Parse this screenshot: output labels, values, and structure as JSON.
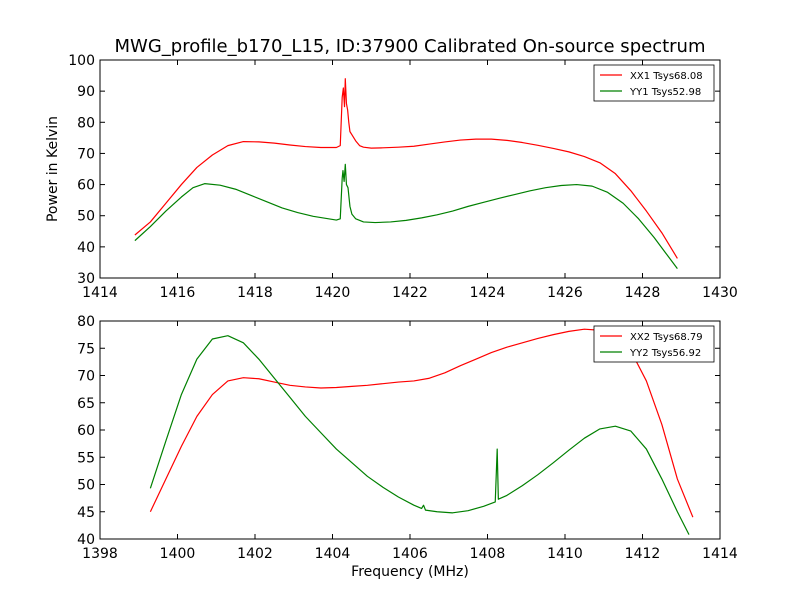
{
  "figure_title": "MWG_profile_b170_L15, ID:37900 Calibrated On-source spectrum",
  "chart_data": [
    {
      "type": "line",
      "xlabel": "",
      "ylabel": "Power in Kelvin",
      "xlim": [
        1414,
        1430
      ],
      "ylim": [
        30,
        100
      ],
      "xticks": [
        1414,
        1416,
        1418,
        1420,
        1422,
        1424,
        1426,
        1428,
        1430
      ],
      "yticks": [
        30,
        40,
        50,
        60,
        70,
        80,
        90,
        100
      ],
      "legend_position": "top-right",
      "series": [
        {
          "name": "XX1 Tsys68.08",
          "color": "#ff0000",
          "points": [
            [
              1414.9,
              43.8
            ],
            [
              1415.3,
              48
            ],
            [
              1415.7,
              54
            ],
            [
              1416.1,
              60
            ],
            [
              1416.5,
              65.5
            ],
            [
              1416.9,
              69.5
            ],
            [
              1417.3,
              72.5
            ],
            [
              1417.7,
              73.8
            ],
            [
              1418.1,
              73.7
            ],
            [
              1418.5,
              73.3
            ],
            [
              1418.9,
              72.7
            ],
            [
              1419.3,
              72.2
            ],
            [
              1419.7,
              71.9
            ],
            [
              1420.1,
              71.9
            ],
            [
              1420.2,
              72.5
            ],
            [
              1420.25,
              88
            ],
            [
              1420.28,
              91
            ],
            [
              1420.31,
              85
            ],
            [
              1420.33,
              94
            ],
            [
              1420.36,
              86
            ],
            [
              1420.39,
              84
            ],
            [
              1420.42,
              80
            ],
            [
              1420.45,
              77
            ],
            [
              1420.5,
              76
            ],
            [
              1420.55,
              75
            ],
            [
              1420.6,
              74
            ],
            [
              1420.7,
              72.5
            ],
            [
              1420.8,
              72
            ],
            [
              1421,
              71.7
            ],
            [
              1421.3,
              71.8
            ],
            [
              1421.7,
              72
            ],
            [
              1422.1,
              72.3
            ],
            [
              1422.5,
              73
            ],
            [
              1422.9,
              73.7
            ],
            [
              1423.3,
              74.3
            ],
            [
              1423.7,
              74.6
            ],
            [
              1424.1,
              74.6
            ],
            [
              1424.5,
              74.2
            ],
            [
              1424.9,
              73.5
            ],
            [
              1425.3,
              72.6
            ],
            [
              1425.7,
              71.6
            ],
            [
              1426.1,
              70.5
            ],
            [
              1426.5,
              69
            ],
            [
              1426.9,
              67
            ],
            [
              1427.3,
              63.5
            ],
            [
              1427.7,
              58
            ],
            [
              1428.1,
              51.5
            ],
            [
              1428.5,
              44.5
            ],
            [
              1428.9,
              36.3
            ]
          ]
        },
        {
          "name": "YY1 Tsys52.98",
          "color": "#008000",
          "points": [
            [
              1414.9,
              42
            ],
            [
              1415.3,
              46.5
            ],
            [
              1415.7,
              51.5
            ],
            [
              1416.1,
              56
            ],
            [
              1416.4,
              59
            ],
            [
              1416.7,
              60.3
            ],
            [
              1417.1,
              59.8
            ],
            [
              1417.5,
              58.5
            ],
            [
              1417.9,
              56.5
            ],
            [
              1418.3,
              54.5
            ],
            [
              1418.7,
              52.5
            ],
            [
              1419.1,
              51
            ],
            [
              1419.5,
              49.8
            ],
            [
              1419.9,
              49
            ],
            [
              1420.1,
              48.6
            ],
            [
              1420.2,
              49
            ],
            [
              1420.25,
              62
            ],
            [
              1420.27,
              64.5
            ],
            [
              1420.3,
              61
            ],
            [
              1420.33,
              66.5
            ],
            [
              1420.36,
              60
            ],
            [
              1420.4,
              59
            ],
            [
              1420.45,
              53
            ],
            [
              1420.5,
              50.5
            ],
            [
              1420.6,
              49
            ],
            [
              1420.8,
              48
            ],
            [
              1421.1,
              47.8
            ],
            [
              1421.5,
              48
            ],
            [
              1421.9,
              48.5
            ],
            [
              1422.3,
              49.3
            ],
            [
              1422.7,
              50.3
            ],
            [
              1423.1,
              51.5
            ],
            [
              1423.5,
              53
            ],
            [
              1423.9,
              54.3
            ],
            [
              1424.3,
              55.6
            ],
            [
              1424.7,
              56.8
            ],
            [
              1425.1,
              58
            ],
            [
              1425.5,
              59
            ],
            [
              1425.9,
              59.7
            ],
            [
              1426.3,
              60
            ],
            [
              1426.7,
              59.5
            ],
            [
              1427.1,
              57.5
            ],
            [
              1427.5,
              54
            ],
            [
              1427.9,
              49
            ],
            [
              1428.3,
              43
            ],
            [
              1428.6,
              38
            ],
            [
              1428.9,
              33
            ]
          ]
        }
      ]
    },
    {
      "type": "line",
      "xlabel": "Frequency (MHz)",
      "ylabel": "",
      "xlim": [
        1398,
        1414
      ],
      "ylim": [
        40,
        80
      ],
      "xticks": [
        1398,
        1400,
        1402,
        1404,
        1406,
        1408,
        1410,
        1412,
        1414
      ],
      "yticks": [
        40,
        45,
        50,
        55,
        60,
        65,
        70,
        75,
        80
      ],
      "legend_position": "top-right",
      "series": [
        {
          "name": "XX2 Tsys68.79",
          "color": "#ff0000",
          "points": [
            [
              1399.3,
              45
            ],
            [
              1399.7,
              51
            ],
            [
              1400.1,
              57
            ],
            [
              1400.5,
              62.5
            ],
            [
              1400.9,
              66.5
            ],
            [
              1401.3,
              69
            ],
            [
              1401.7,
              69.6
            ],
            [
              1402.1,
              69.4
            ],
            [
              1402.5,
              68.8
            ],
            [
              1402.9,
              68.2
            ],
            [
              1403.3,
              67.9
            ],
            [
              1403.7,
              67.7
            ],
            [
              1404.1,
              67.8
            ],
            [
              1404.5,
              68
            ],
            [
              1404.9,
              68.2
            ],
            [
              1405.3,
              68.5
            ],
            [
              1405.7,
              68.8
            ],
            [
              1406.1,
              69
            ],
            [
              1406.5,
              69.5
            ],
            [
              1406.9,
              70.5
            ],
            [
              1407.3,
              71.8
            ],
            [
              1407.7,
              73
            ],
            [
              1408.1,
              74.2
            ],
            [
              1408.5,
              75.2
            ],
            [
              1408.9,
              76
            ],
            [
              1409.3,
              76.8
            ],
            [
              1409.7,
              77.5
            ],
            [
              1410.1,
              78.1
            ],
            [
              1410.5,
              78.5
            ],
            [
              1410.9,
              78.3
            ],
            [
              1411.3,
              77.3
            ],
            [
              1411.7,
              74.5
            ],
            [
              1412.1,
              69
            ],
            [
              1412.5,
              61
            ],
            [
              1412.9,
              51
            ],
            [
              1413.3,
              44
            ]
          ]
        },
        {
          "name": "YY2 Tsys56.92",
          "color": "#008000",
          "points": [
            [
              1399.3,
              49.3
            ],
            [
              1399.7,
              58
            ],
            [
              1400.1,
              66.5
            ],
            [
              1400.5,
              73
            ],
            [
              1400.9,
              76.7
            ],
            [
              1401.3,
              77.3
            ],
            [
              1401.7,
              76
            ],
            [
              1402.1,
              73
            ],
            [
              1402.5,
              69.5
            ],
            [
              1402.9,
              66
            ],
            [
              1403.3,
              62.5
            ],
            [
              1403.7,
              59.5
            ],
            [
              1404.1,
              56.5
            ],
            [
              1404.5,
              54
            ],
            [
              1404.9,
              51.5
            ],
            [
              1405.3,
              49.5
            ],
            [
              1405.7,
              47.7
            ],
            [
              1406.1,
              46.2
            ],
            [
              1406.3,
              45.6
            ],
            [
              1406.35,
              46.2
            ],
            [
              1406.4,
              45.3
            ],
            [
              1406.7,
              45
            ],
            [
              1407.1,
              44.8
            ],
            [
              1407.5,
              45.2
            ],
            [
              1407.9,
              46
            ],
            [
              1408.2,
              46.8
            ],
            [
              1408.25,
              56.5
            ],
            [
              1408.28,
              47.3
            ],
            [
              1408.5,
              48
            ],
            [
              1408.9,
              49.8
            ],
            [
              1409.3,
              51.8
            ],
            [
              1409.7,
              54
            ],
            [
              1410.1,
              56.3
            ],
            [
              1410.5,
              58.5
            ],
            [
              1410.9,
              60.2
            ],
            [
              1411.3,
              60.7
            ],
            [
              1411.7,
              59.8
            ],
            [
              1412.1,
              56.5
            ],
            [
              1412.5,
              51
            ],
            [
              1412.9,
              45
            ],
            [
              1413.2,
              40.8
            ]
          ]
        }
      ]
    }
  ]
}
